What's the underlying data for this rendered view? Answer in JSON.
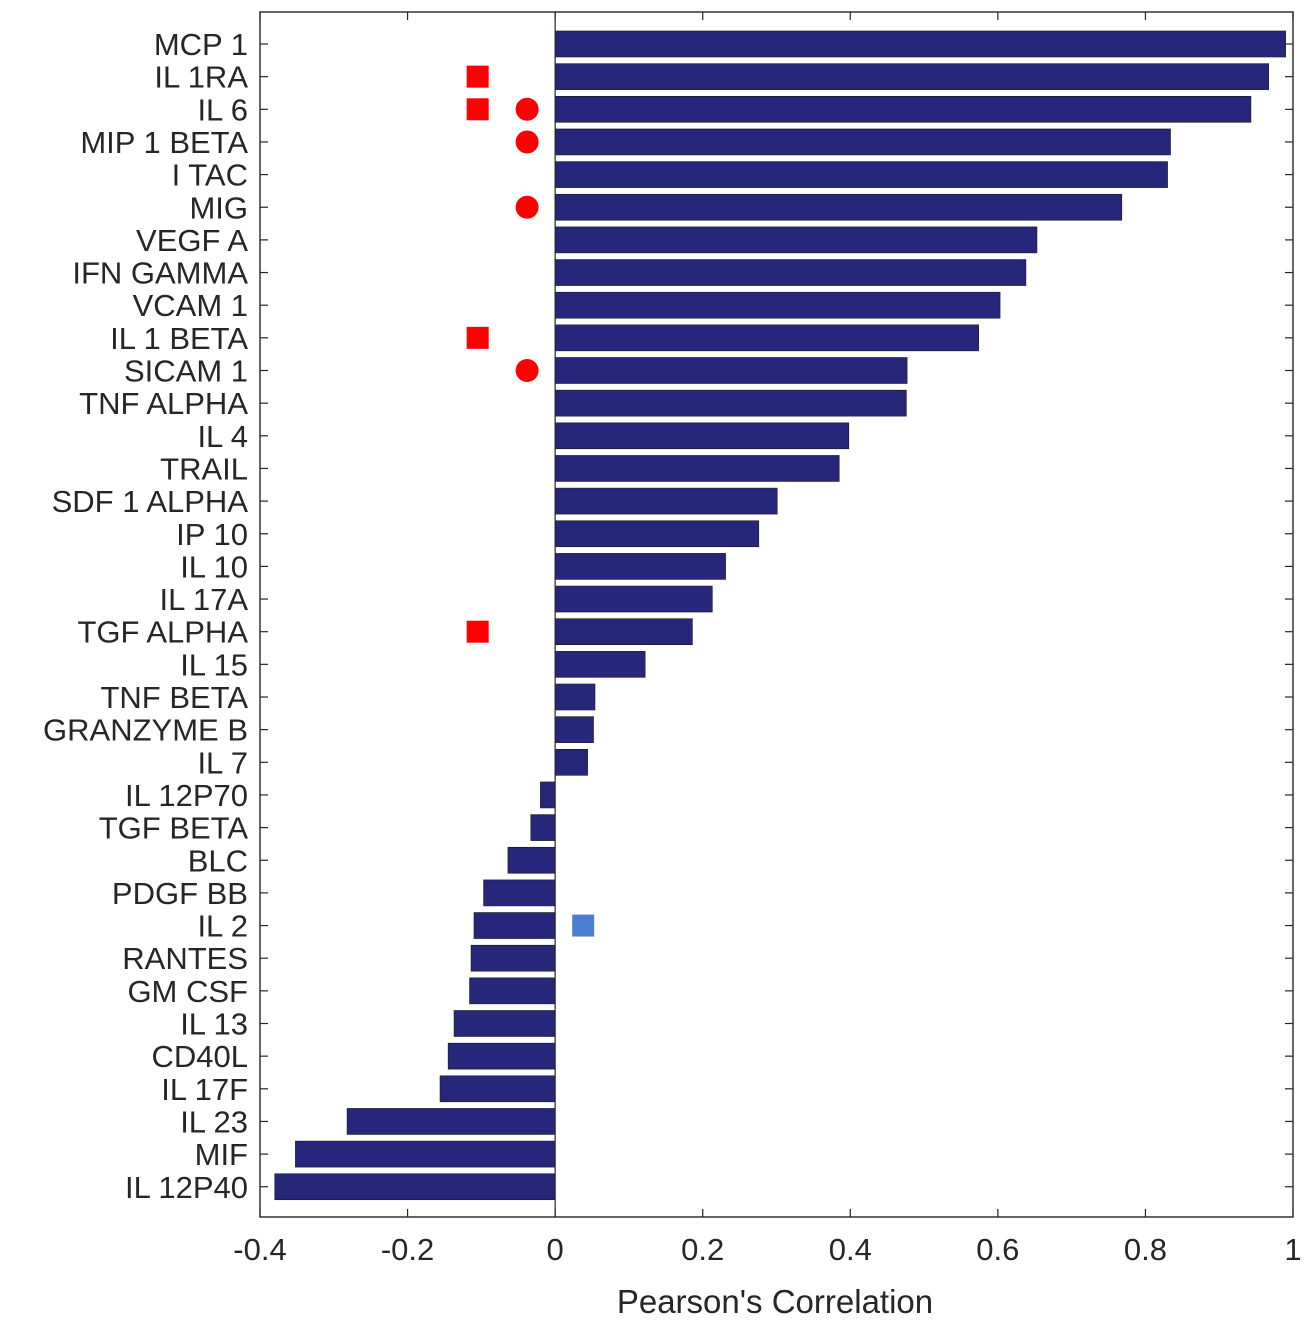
{
  "chart_data": {
    "type": "bar",
    "orientation": "horizontal",
    "title": "",
    "xlabel": "Pearson's Correlation",
    "ylabel": "",
    "xlim": [
      -0.4,
      1
    ],
    "xticks": [
      -0.4,
      -0.2,
      0,
      0.2,
      0.4,
      0.6,
      0.8,
      1
    ],
    "xtick_labels": [
      "-0.4",
      "-0.2",
      "0",
      "0.2",
      "0.4",
      "0.6",
      "0.8",
      "1"
    ],
    "grid": false,
    "legend": "none",
    "categories": [
      "MCP 1",
      "IL 1RA",
      "IL 6",
      "MIP 1 BETA",
      "I TAC",
      "MIG",
      "VEGF A",
      "IFN GAMMA",
      "VCAM 1",
      "IL 1 BETA",
      "SICAM 1",
      "TNF ALPHA",
      "IL 4",
      "TRAIL",
      "SDF 1 ALPHA",
      "IP 10",
      "IL 10",
      "IL 17A",
      "TGF ALPHA",
      "IL 15",
      "TNF BETA",
      "GRANZYME B",
      "IL 7",
      "IL 12P70",
      "TGF BETA",
      "BLC",
      "PDGF BB",
      "IL 2",
      "RANTES",
      "GM CSF",
      "IL 13",
      "CD40L",
      "IL 17F",
      "IL 23",
      "MIF",
      "IL 12P40"
    ],
    "values": [
      0.99,
      0.967,
      0.943,
      0.834,
      0.83,
      0.768,
      0.653,
      0.638,
      0.603,
      0.574,
      0.477,
      0.476,
      0.398,
      0.385,
      0.301,
      0.276,
      0.231,
      0.213,
      0.186,
      0.122,
      0.054,
      0.052,
      0.044,
      -0.02,
      -0.033,
      -0.064,
      -0.097,
      -0.11,
      -0.114,
      -0.116,
      -0.137,
      -0.145,
      -0.156,
      -0.282,
      -0.352,
      -0.38
    ],
    "bar_color": "#26267a",
    "markers": [
      {
        "category": "IL 1RA",
        "shape": "square",
        "color": "#ff0000",
        "x": -0.105
      },
      {
        "category": "IL 6",
        "shape": "square",
        "color": "#ff0000",
        "x": -0.105
      },
      {
        "category": "IL 6",
        "shape": "circle",
        "color": "#ff0000",
        "x": -0.038
      },
      {
        "category": "MIP 1 BETA",
        "shape": "circle",
        "color": "#ff0000",
        "x": -0.038
      },
      {
        "category": "MIG",
        "shape": "circle",
        "color": "#ff0000",
        "x": -0.038
      },
      {
        "category": "IL 1 BETA",
        "shape": "square",
        "color": "#ff0000",
        "x": -0.105
      },
      {
        "category": "SICAM 1",
        "shape": "circle",
        "color": "#ff0000",
        "x": -0.038
      },
      {
        "category": "TGF ALPHA",
        "shape": "square",
        "color": "#ff0000",
        "x": -0.105
      },
      {
        "category": "IL 2",
        "shape": "square",
        "color": "#4a7fcf",
        "x": 0.038
      }
    ]
  }
}
